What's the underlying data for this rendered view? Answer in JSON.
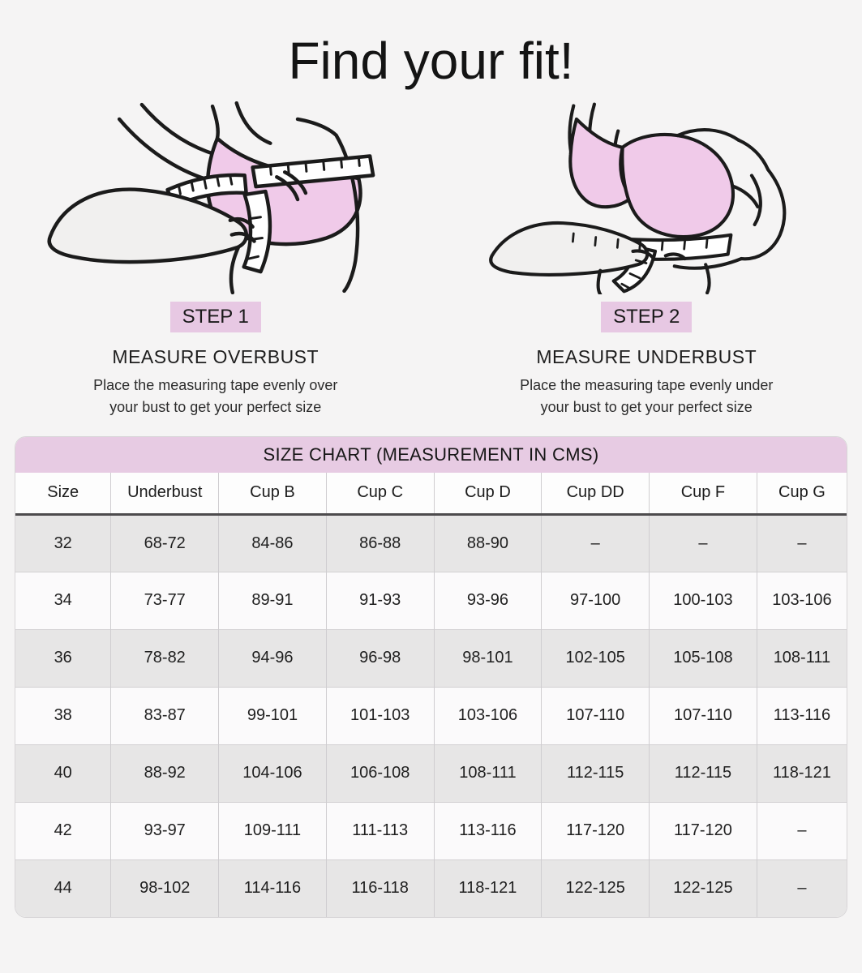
{
  "page": {
    "title": "Find your fit!"
  },
  "steps": [
    {
      "badge": "STEP 1",
      "heading": "MEASURE OVERBUST",
      "description_line1": "Place the measuring tape evenly over",
      "description_line2": "your bust to get your perfect size",
      "illustration": "overbust-measure-illustration"
    },
    {
      "badge": "STEP 2",
      "heading": "MEASURE UNDERBUST",
      "description_line1": "Place the measuring tape evenly under",
      "description_line2": "your bust to get your perfect size",
      "illustration": "underbust-measure-illustration"
    }
  ],
  "size_chart": {
    "title": "SIZE CHART (MEASUREMENT IN CMS)",
    "columns": [
      "Size",
      "Underbust",
      "Cup B",
      "Cup C",
      "Cup D",
      "Cup DD",
      "Cup F",
      "Cup G"
    ],
    "rows": [
      [
        "32",
        "68-72",
        "84-86",
        "86-88",
        "88-90",
        "–",
        "–",
        "–"
      ],
      [
        "34",
        "73-77",
        "89-91",
        "91-93",
        "93-96",
        "97-100",
        "100-103",
        "103-106"
      ],
      [
        "36",
        "78-82",
        "94-96",
        "96-98",
        "98-101",
        "102-105",
        "105-108",
        "108-111"
      ],
      [
        "38",
        "83-87",
        "99-101",
        "101-103",
        "103-106",
        "107-110",
        "107-110",
        "113-116"
      ],
      [
        "40",
        "88-92",
        "104-106",
        "106-108",
        "108-111",
        "112-115",
        "112-115",
        "118-121"
      ],
      [
        "42",
        "93-97",
        "109-111",
        "111-113",
        "113-116",
        "117-120",
        "117-120",
        "–"
      ],
      [
        "44",
        "98-102",
        "114-116",
        "116-118",
        "118-121",
        "122-125",
        "122-125",
        "–"
      ]
    ]
  },
  "colors": {
    "page_background": "#f5f4f4",
    "accent_pink": "#e7c8e3",
    "bra_pink": "#f0cae9",
    "row_gray": "#e7e6e6",
    "header_rule_dark": "#4d4b4d",
    "skin_gray": "#f1f0ef",
    "line_black": "#1b1b1b"
  }
}
